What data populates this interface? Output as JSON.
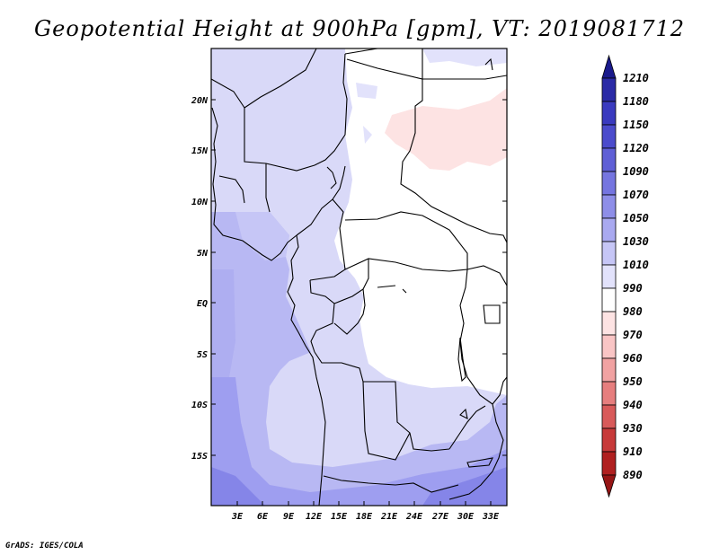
{
  "title": "Geopotential Height at 900hPa [gpm], VT: 2019081712",
  "footer": "GrADS: IGES/COLA",
  "map": {
    "lat_labels": [
      "20N",
      "15N",
      "10N",
      "5N",
      "EQ",
      "5S",
      "10S",
      "15S"
    ],
    "lon_labels": [
      "3E",
      "6E",
      "9E",
      "12E",
      "15E",
      "18E",
      "21E",
      "24E",
      "27E",
      "30E",
      "33E"
    ]
  },
  "colorbar": {
    "labels": [
      "1210",
      "1180",
      "1150",
      "1120",
      "1090",
      "1070",
      "1050",
      "1030",
      "1010",
      "990",
      "980",
      "970",
      "960",
      "950",
      "940",
      "930",
      "910",
      "890"
    ],
    "colors": [
      "#1a1a8c",
      "#2a2aa6",
      "#3a3abf",
      "#4b4bcc",
      "#5f5fd6",
      "#7575e0",
      "#8e8ee8",
      "#a9a9f0",
      "#c6c6f6",
      "#e2e2fb",
      "#ffffff",
      "#fde3e3",
      "#f9c5c5",
      "#f1a2a2",
      "#e67e7e",
      "#d85a5a",
      "#c73a3a",
      "#b02020",
      "#961515"
    ]
  }
}
